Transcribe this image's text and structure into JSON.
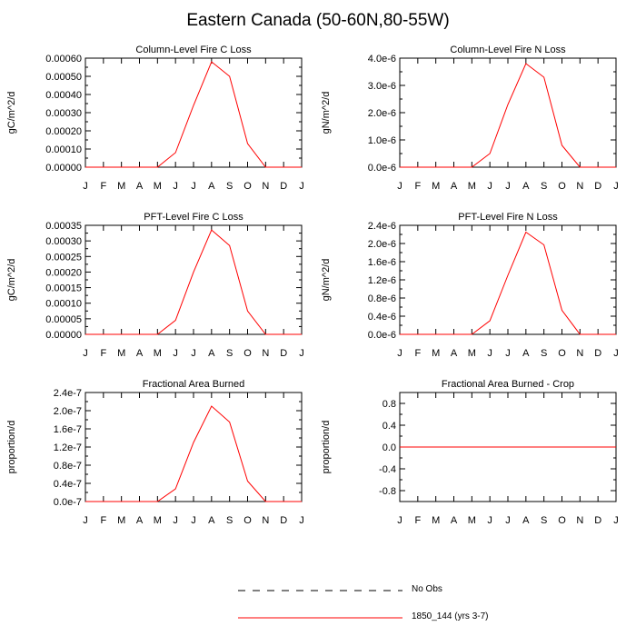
{
  "figure_title": "Eastern Canada (50-60N,80-55W)",
  "legend": {
    "obs_label": "No Obs",
    "model_label": "1850_144 (yrs 3-7)",
    "obs_color": "#000000",
    "model_color": "#ff0000"
  },
  "chart_data": [
    {
      "type": "line",
      "title": "Column-Level Fire C Loss",
      "xlabel": "",
      "ylabel": "gC/m^2/d",
      "categories": [
        "J",
        "F",
        "M",
        "A",
        "M",
        "J",
        "J",
        "A",
        "S",
        "O",
        "N",
        "D",
        "J"
      ],
      "yticks": [
        "0.00000",
        "0.00010",
        "0.00020",
        "0.00030",
        "0.00040",
        "0.00050",
        "0.00060"
      ],
      "ytick_values": [
        0,
        0.0001,
        0.0002,
        0.0003,
        0.0004,
        0.0005,
        0.0006
      ],
      "ylim": [
        0,
        0.0006
      ],
      "series": [
        {
          "name": "1850_144 (yrs 3-7)",
          "color": "#ff0000",
          "values": [
            0,
            0,
            0,
            0,
            0,
            8e-05,
            0.00034,
            0.00058,
            0.0005,
            0.00013,
            0,
            0,
            0
          ]
        }
      ]
    },
    {
      "type": "line",
      "title": "Column-Level Fire N Loss",
      "xlabel": "",
      "ylabel": "gN/m^2/d",
      "categories": [
        "J",
        "F",
        "M",
        "A",
        "M",
        "J",
        "J",
        "A",
        "S",
        "O",
        "N",
        "D",
        "J"
      ],
      "yticks": [
        "0.0e-6",
        "1.0e-6",
        "2.0e-6",
        "3.0e-6",
        "4.0e-6"
      ],
      "ytick_values": [
        0,
        1e-06,
        2e-06,
        3e-06,
        4e-06
      ],
      "ylim": [
        0,
        4e-06
      ],
      "series": [
        {
          "name": "1850_144 (yrs 3-7)",
          "color": "#ff0000",
          "values": [
            0,
            0,
            0,
            0,
            0,
            5e-07,
            2.3e-06,
            3.8e-06,
            3.3e-06,
            8e-07,
            0,
            0,
            0
          ]
        }
      ]
    },
    {
      "type": "line",
      "title": "PFT-Level Fire C Loss",
      "xlabel": "",
      "ylabel": "gC/m^2/d",
      "categories": [
        "J",
        "F",
        "M",
        "A",
        "M",
        "J",
        "J",
        "A",
        "S",
        "O",
        "N",
        "D",
        "J"
      ],
      "yticks": [
        "0.00000",
        "0.00005",
        "0.00010",
        "0.00015",
        "0.00020",
        "0.00025",
        "0.00030",
        "0.00035"
      ],
      "ytick_values": [
        0,
        5e-05,
        0.0001,
        0.00015,
        0.0002,
        0.00025,
        0.0003,
        0.00035
      ],
      "ylim": [
        0,
        0.00035
      ],
      "series": [
        {
          "name": "1850_144 (yrs 3-7)",
          "color": "#ff0000",
          "values": [
            0,
            0,
            0,
            0,
            0,
            4.5e-05,
            0.0002,
            0.000335,
            0.000285,
            7.5e-05,
            0,
            0,
            0
          ]
        }
      ]
    },
    {
      "type": "line",
      "title": "PFT-Level Fire N Loss",
      "xlabel": "",
      "ylabel": "gN/m^2/d",
      "categories": [
        "J",
        "F",
        "M",
        "A",
        "M",
        "J",
        "J",
        "A",
        "S",
        "O",
        "N",
        "D",
        "J"
      ],
      "yticks": [
        "0.0e-6",
        "0.4e-6",
        "0.8e-6",
        "1.2e-6",
        "1.6e-6",
        "2.0e-6",
        "2.4e-6"
      ],
      "ytick_values": [
        0,
        4e-07,
        8e-07,
        1.2e-06,
        1.6e-06,
        2e-06,
        2.4e-06
      ],
      "ylim": [
        0,
        2.4e-06
      ],
      "series": [
        {
          "name": "1850_144 (yrs 3-7)",
          "color": "#ff0000",
          "values": [
            0,
            0,
            0,
            0,
            0,
            3e-07,
            1.3e-06,
            2.25e-06,
            1.97e-06,
            5.3e-07,
            0,
            0,
            0
          ]
        }
      ]
    },
    {
      "type": "line",
      "title": "Fractional Area Burned",
      "xlabel": "",
      "ylabel": "proportion/d",
      "categories": [
        "J",
        "F",
        "M",
        "A",
        "M",
        "J",
        "J",
        "A",
        "S",
        "O",
        "N",
        "D",
        "J"
      ],
      "yticks": [
        "0.0e-7",
        "0.4e-7",
        "0.8e-7",
        "1.2e-7",
        "1.6e-7",
        "2.0e-7",
        "2.4e-7"
      ],
      "ytick_values": [
        0,
        4e-08,
        8e-08,
        1.2e-07,
        1.6e-07,
        2e-07,
        2.4e-07
      ],
      "ylim": [
        0,
        2.4e-07
      ],
      "series": [
        {
          "name": "1850_144 (yrs 3-7)",
          "color": "#ff0000",
          "values": [
            0,
            0,
            0,
            0,
            0,
            2.8e-08,
            1.3e-07,
            2.1e-07,
            1.75e-07,
            4.5e-08,
            0,
            0,
            0
          ]
        }
      ]
    },
    {
      "type": "line",
      "title": "Fractional Area Burned - Crop",
      "xlabel": "",
      "ylabel": "proportion/d",
      "categories": [
        "J",
        "F",
        "M",
        "A",
        "M",
        "J",
        "J",
        "A",
        "S",
        "O",
        "N",
        "D",
        "J"
      ],
      "yticks": [
        "-0.8",
        "-0.4",
        "0.0",
        "0.4",
        "0.8"
      ],
      "ytick_values": [
        -0.8,
        -0.4,
        0,
        0.4,
        0.8
      ],
      "ylim": [
        -1.0,
        1.0
      ],
      "series": [
        {
          "name": "1850_144 (yrs 3-7)",
          "color": "#ff0000",
          "values": [
            0,
            0,
            0,
            0,
            0,
            0,
            0,
            0,
            0,
            0,
            0,
            0,
            0
          ]
        }
      ]
    }
  ]
}
